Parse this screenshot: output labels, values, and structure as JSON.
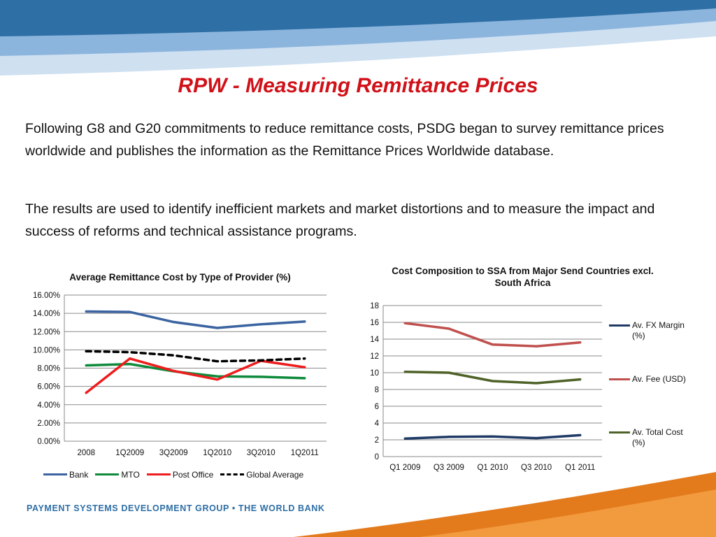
{
  "slide": {
    "title": "RPW - Measuring Remittance Prices",
    "paragraph1": "Following G8 and G20 commitments to reduce remittance costs, PSDG began to survey remittance prices worldwide and publishes the information as the Remittance Prices Worldwide database.",
    "paragraph2": "The results are used to identify inefficient markets and market distortions and to measure the impact and success of reforms and technical assistance programs.",
    "footer": "PAYMENT SYSTEMS DEVELOPMENT GROUP • THE WORLD BANK"
  },
  "colors": {
    "title": "#d01118",
    "banner": "#2e6fa6",
    "footer_accent": "#e37a1c"
  },
  "chart_data": [
    {
      "type": "line",
      "title": "Average Remittance Cost by Type of Provider (%)",
      "categories": [
        "2008",
        "1Q2009",
        "3Q2009",
        "1Q2010",
        "3Q2010",
        "1Q2011"
      ],
      "y_ticks": [
        "0.00%",
        "2.00%",
        "4.00%",
        "6.00%",
        "8.00%",
        "10.00%",
        "12.00%",
        "14.00%",
        "16.00%"
      ],
      "ylim": [
        0,
        16
      ],
      "grid": true,
      "legend": "bottom",
      "series": [
        {
          "name": "Bank",
          "color": "#3b64a0",
          "dash": false,
          "values": [
            14.2,
            14.15,
            13.05,
            12.4,
            12.8,
            13.1
          ]
        },
        {
          "name": "MTO",
          "color": "#0f8a3c",
          "dash": false,
          "values": [
            8.3,
            8.45,
            7.65,
            7.1,
            7.05,
            6.9
          ]
        },
        {
          "name": "Post Office",
          "color": "#ee1c1c",
          "dash": false,
          "values": [
            5.3,
            9.05,
            7.7,
            6.75,
            8.8,
            8.1
          ]
        },
        {
          "name": "Global Average",
          "color": "#000000",
          "dash": true,
          "values": [
            9.85,
            9.75,
            9.4,
            8.75,
            8.85,
            9.05
          ]
        }
      ]
    },
    {
      "type": "line",
      "title": "Cost Composition to SSA from Major Send Countries excl. South Africa",
      "categories": [
        "Q1 2009",
        "Q3 2009",
        "Q1 2010",
        "Q3 2010",
        "Q1 2011"
      ],
      "y_ticks": [
        "0",
        "2",
        "4",
        "6",
        "8",
        "10",
        "12",
        "14",
        "16",
        "18"
      ],
      "ylim": [
        0,
        18
      ],
      "grid": true,
      "legend": "right",
      "series": [
        {
          "name": "Av. FX Margin (%)",
          "color": "#1f3a66",
          "dash": false,
          "values": [
            2.15,
            2.35,
            2.4,
            2.2,
            2.55
          ]
        },
        {
          "name": "Av. Fee (USD)",
          "color": "#c0504d",
          "dash": false,
          "values": [
            15.9,
            15.25,
            13.35,
            13.15,
            13.6
          ]
        },
        {
          "name": "Av. Total Cost (%)",
          "color": "#4f6228",
          "dash": false,
          "values": [
            10.1,
            10.0,
            9.0,
            8.75,
            9.2
          ]
        }
      ]
    }
  ]
}
